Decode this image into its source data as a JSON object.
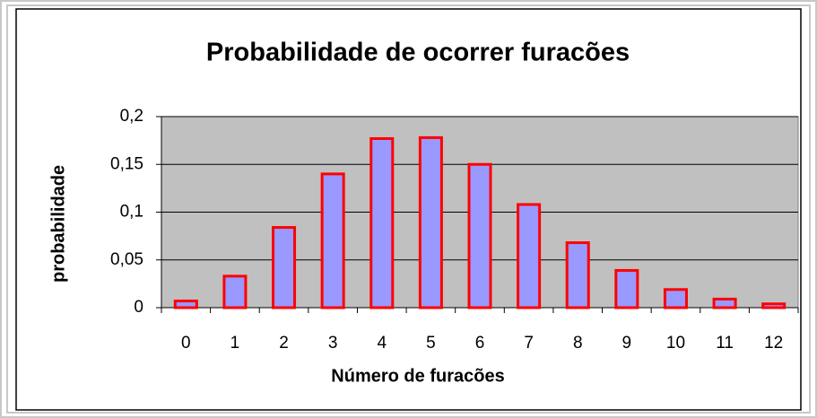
{
  "chart_data": {
    "type": "bar",
    "title": "Probabilidade de ocorrer furacões",
    "x_label": "Número de furacões",
    "y_label": "probabilidade",
    "categories": [
      "0",
      "1",
      "2",
      "3",
      "4",
      "5",
      "6",
      "7",
      "8",
      "9",
      "10",
      "11",
      "12"
    ],
    "values": [
      0.007,
      0.033,
      0.084,
      0.14,
      0.177,
      0.178,
      0.15,
      0.108,
      0.068,
      0.039,
      0.019,
      0.009,
      0.004
    ],
    "color": "#9999ff",
    "edge_color": "#ff0000",
    "ylim": [
      0,
      0.2
    ],
    "yticks": [
      0,
      {
        "value": 0.05,
        "label": "0,05"
      },
      {
        "value": 0.1,
        "label": "0,1"
      },
      {
        "value": 0.15,
        "label": "0,15"
      },
      {
        "value": 0.2,
        "label": "0,2"
      }
    ],
    "grid": true
  }
}
